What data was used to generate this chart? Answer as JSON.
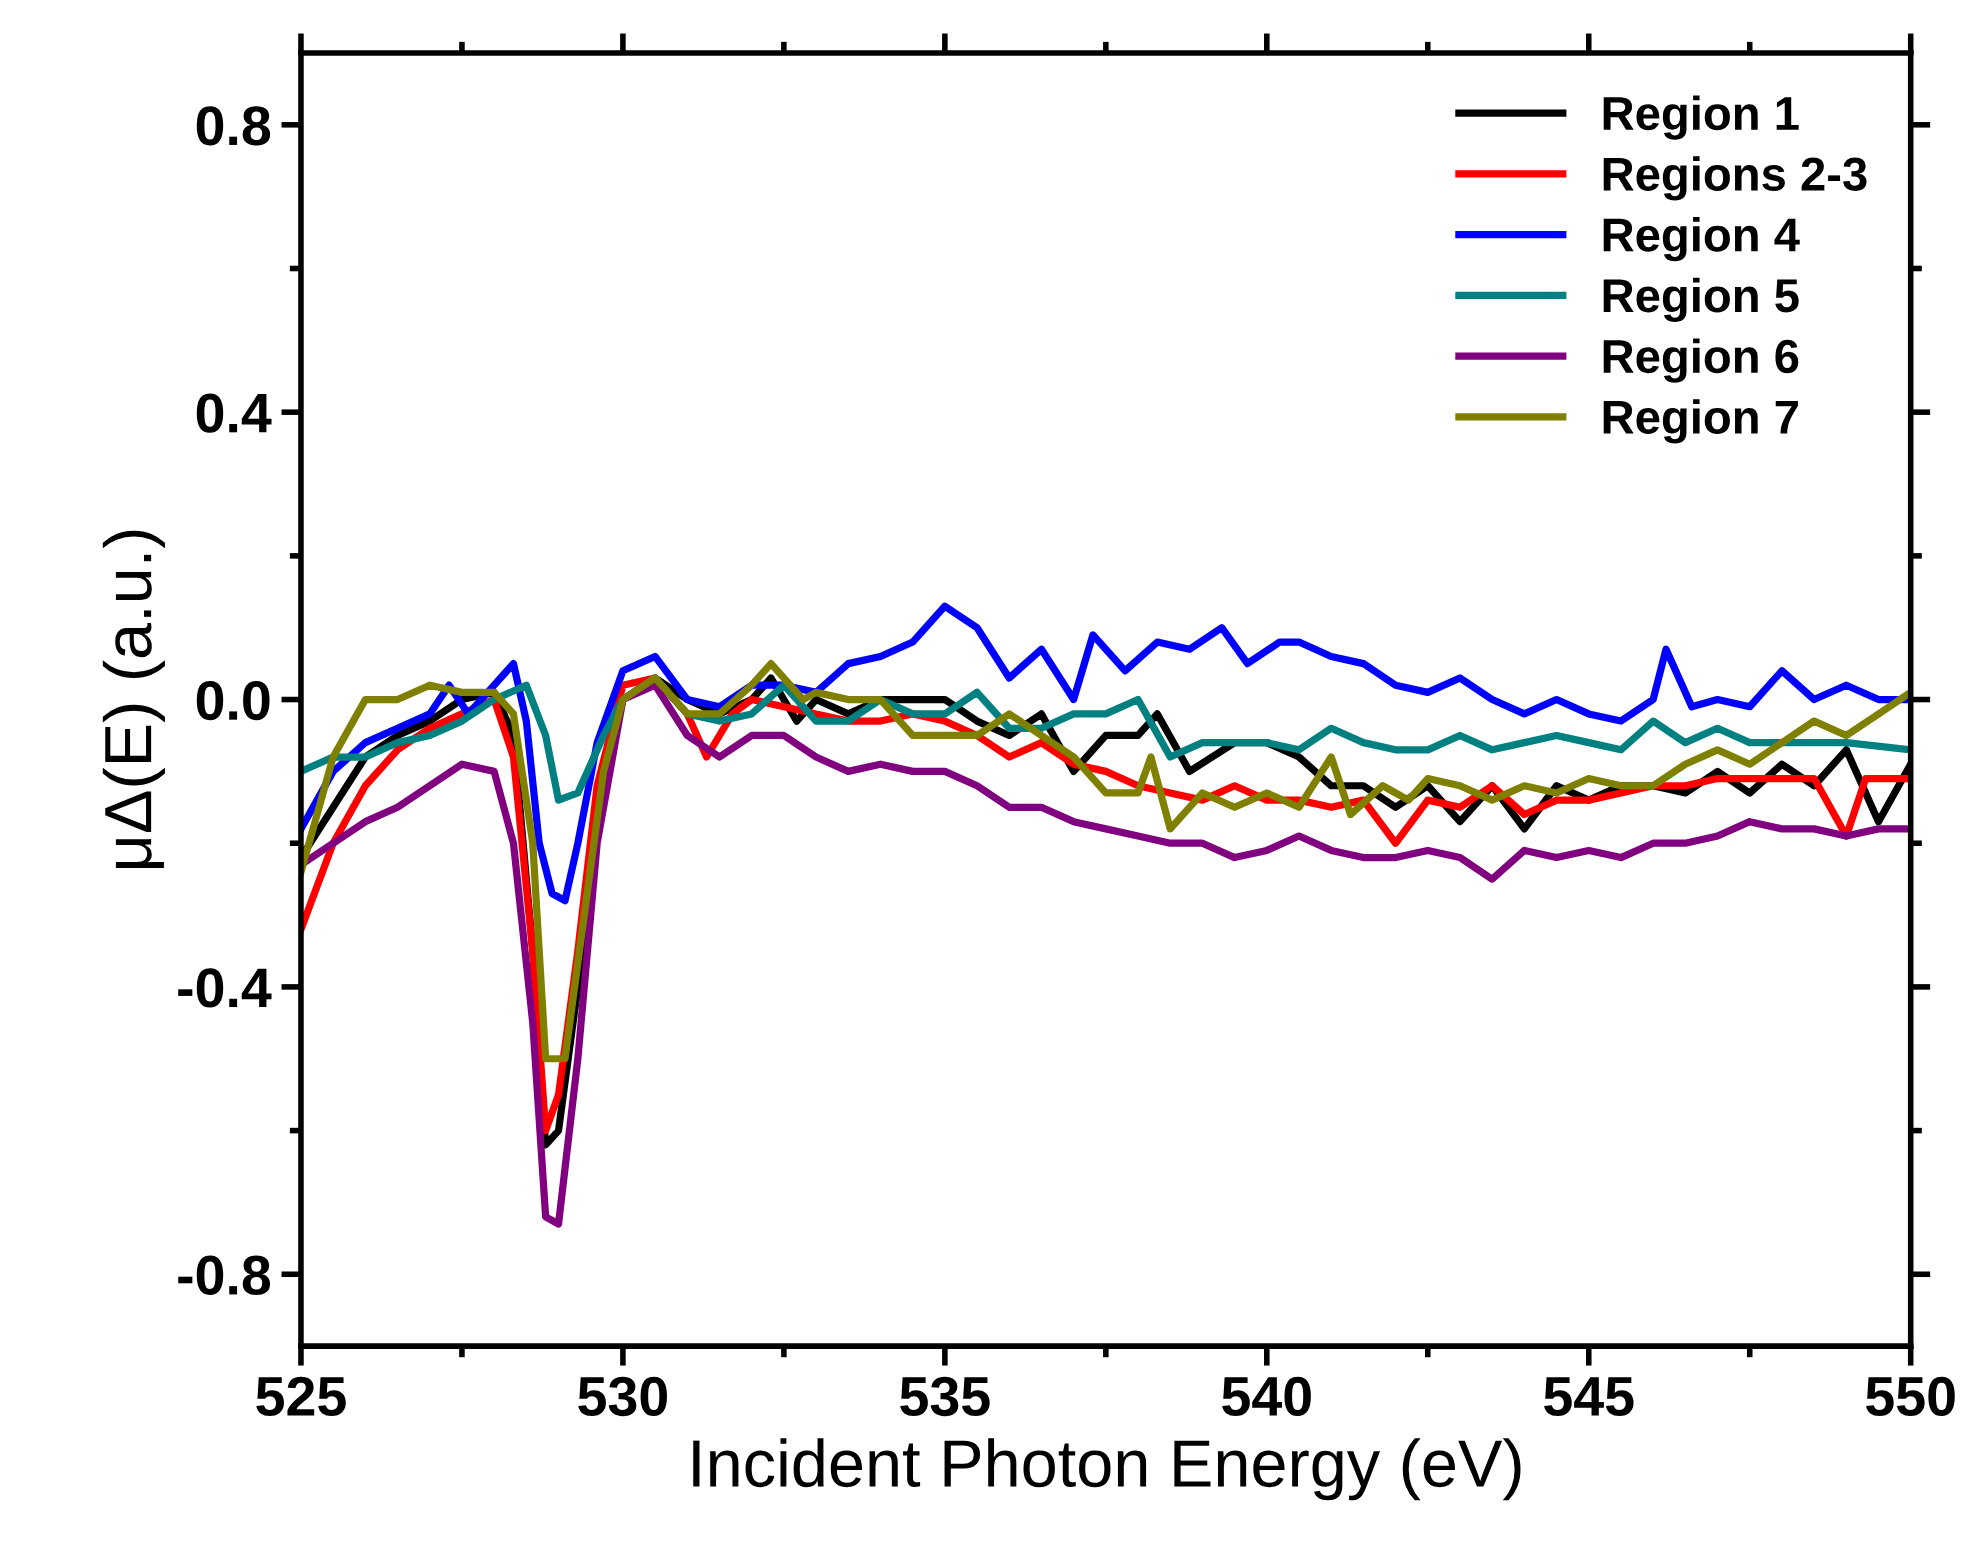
{
  "chart_data": {
    "type": "line",
    "xlabel": "Incident Photon Energy (eV)",
    "ylabel": "μΔ(E) (a.u.)",
    "xlim": [
      525,
      550
    ],
    "ylim": [
      -0.9,
      0.9
    ],
    "xticks": [
      525,
      530,
      535,
      540,
      545,
      550
    ],
    "yticks": [
      {
        "value": -0.8,
        "label": "-0.8"
      },
      {
        "value": -0.4,
        "label": "-0.4"
      },
      {
        "value": 0,
        "label": "0.0"
      },
      {
        "value": 0.4,
        "label": "0.4"
      },
      {
        "value": 0.8,
        "label": "0.8"
      }
    ],
    "grid": false,
    "legend": "top right",
    "marker": "none",
    "line_style": "solid",
    "series": [
      {
        "name": "Region 1",
        "color": "#000000",
        "x": [
          525,
          525.5,
          526,
          526.5,
          527,
          527.5,
          528,
          528.3,
          528.6,
          528.8,
          529.0,
          529.3,
          529.6,
          530,
          530.5,
          531,
          531.5,
          532,
          532.3,
          532.7,
          533,
          533.5,
          534,
          534.5,
          535,
          535.5,
          536,
          536.5,
          537,
          537.5,
          538,
          538.3,
          538.8,
          539.5,
          540,
          540.5,
          541,
          541.5,
          542,
          542.5,
          543,
          543.5,
          544,
          544.5,
          545,
          545.5,
          546,
          546.5,
          547,
          547.5,
          548,
          548.5,
          549,
          549.5,
          550
        ],
        "values": [
          -0.22,
          -0.15,
          -0.08,
          -0.05,
          -0.03,
          0.0,
          0.01,
          -0.05,
          -0.35,
          -0.62,
          -0.6,
          -0.4,
          -0.15,
          0.0,
          0.03,
          0.0,
          -0.02,
          0.0,
          0.03,
          -0.03,
          0.0,
          -0.02,
          0.0,
          0.0,
          0.0,
          -0.03,
          -0.05,
          -0.02,
          -0.1,
          -0.05,
          -0.05,
          -0.02,
          -0.1,
          -0.06,
          -0.06,
          -0.08,
          -0.12,
          -0.12,
          -0.15,
          -0.12,
          -0.17,
          -0.12,
          -0.18,
          -0.12,
          -0.14,
          -0.12,
          -0.12,
          -0.13,
          -0.1,
          -0.13,
          -0.09,
          -0.12,
          -0.07,
          -0.17,
          -0.09
        ]
      },
      {
        "name": "Regions 2-3",
        "color": "#ff0000",
        "x": [
          525,
          525.5,
          526,
          526.5,
          527,
          527.5,
          528,
          528.3,
          528.6,
          528.8,
          529.0,
          529.3,
          529.6,
          530,
          530.5,
          531,
          531.3,
          531.7,
          532,
          532.5,
          533,
          533.5,
          534,
          534.5,
          535,
          535.5,
          536,
          536.5,
          537,
          537.5,
          538,
          538.5,
          539,
          539.5,
          540,
          540.5,
          541,
          541.5,
          542,
          542.5,
          543,
          543.5,
          544,
          544.5,
          545,
          545.5,
          546,
          546.5,
          547,
          547.5,
          548,
          548.5,
          549,
          549.3,
          550
        ],
        "values": [
          -0.32,
          -0.2,
          -0.12,
          -0.07,
          -0.04,
          -0.02,
          0.0,
          -0.08,
          -0.35,
          -0.6,
          -0.55,
          -0.35,
          -0.12,
          0.02,
          0.03,
          -0.02,
          -0.08,
          -0.02,
          0.0,
          -0.01,
          -0.02,
          -0.03,
          -0.03,
          -0.02,
          -0.03,
          -0.05,
          -0.08,
          -0.06,
          -0.09,
          -0.1,
          -0.12,
          -0.13,
          -0.14,
          -0.12,
          -0.14,
          -0.14,
          -0.15,
          -0.14,
          -0.2,
          -0.14,
          -0.15,
          -0.12,
          -0.16,
          -0.14,
          -0.14,
          -0.13,
          -0.12,
          -0.12,
          -0.11,
          -0.11,
          -0.11,
          -0.11,
          -0.19,
          -0.11,
          -0.11
        ]
      },
      {
        "name": "Region 4",
        "color": "#0000ff",
        "x": [
          525,
          525.5,
          526,
          526.5,
          527,
          527.3,
          527.6,
          528,
          528.3,
          528.5,
          528.7,
          528.9,
          529.1,
          529.3,
          529.6,
          530,
          530.5,
          531,
          531.5,
          532,
          532.5,
          533,
          533.5,
          534,
          534.5,
          535,
          535.5,
          536,
          536.5,
          537,
          537.3,
          537.8,
          538.3,
          538.8,
          539.3,
          539.7,
          540.2,
          540.5,
          541,
          541.5,
          542,
          542.5,
          543,
          543.5,
          544,
          544.5,
          545,
          545.5,
          546,
          546.2,
          546.6,
          547,
          547.5,
          548,
          548.5,
          549,
          549.5,
          550
        ],
        "values": [
          -0.18,
          -0.1,
          -0.06,
          -0.04,
          -0.02,
          0.02,
          -0.02,
          0.02,
          0.05,
          -0.03,
          -0.2,
          -0.27,
          -0.28,
          -0.2,
          -0.06,
          0.04,
          0.06,
          0.0,
          -0.01,
          0.02,
          0.02,
          0.01,
          0.05,
          0.06,
          0.08,
          0.13,
          0.1,
          0.03,
          0.07,
          0.0,
          0.09,
          0.04,
          0.08,
          0.07,
          0.1,
          0.05,
          0.08,
          0.08,
          0.06,
          0.05,
          0.02,
          0.01,
          0.03,
          0.0,
          -0.02,
          0.0,
          -0.02,
          -0.03,
          0.0,
          0.07,
          -0.01,
          0.0,
          -0.01,
          0.04,
          0.0,
          0.02,
          0.0,
          0.0
        ]
      },
      {
        "name": "Region 5",
        "color": "#008080",
        "x": [
          525,
          525.5,
          526,
          526.5,
          527,
          527.5,
          528,
          528.5,
          528.8,
          529,
          529.3,
          529.7,
          530,
          530.5,
          531,
          531.5,
          532,
          532.5,
          533,
          533.5,
          534,
          534.5,
          535,
          535.5,
          536,
          536.5,
          537,
          537.5,
          538,
          538.5,
          539,
          539.5,
          540,
          540.5,
          541,
          541.5,
          542,
          542.5,
          543,
          543.5,
          544,
          544.5,
          545,
          545.5,
          546,
          546.5,
          547,
          547.5,
          548,
          548.5,
          549,
          550
        ],
        "values": [
          -0.1,
          -0.08,
          -0.08,
          -0.06,
          -0.05,
          -0.03,
          0.0,
          0.02,
          -0.05,
          -0.14,
          -0.13,
          -0.05,
          0.0,
          0.03,
          -0.02,
          -0.03,
          -0.02,
          0.02,
          -0.03,
          -0.03,
          0.0,
          -0.02,
          -0.02,
          0.01,
          -0.04,
          -0.04,
          -0.02,
          -0.02,
          0.0,
          -0.08,
          -0.06,
          -0.06,
          -0.06,
          -0.07,
          -0.04,
          -0.06,
          -0.07,
          -0.07,
          -0.05,
          -0.07,
          -0.06,
          -0.05,
          -0.06,
          -0.07,
          -0.03,
          -0.06,
          -0.04,
          -0.06,
          -0.06,
          -0.06,
          -0.06,
          -0.07
        ]
      },
      {
        "name": "Region 6",
        "color": "#800080",
        "x": [
          525,
          525.5,
          526,
          526.5,
          527,
          527.5,
          528,
          528.3,
          528.6,
          528.8,
          529.0,
          529.3,
          529.6,
          530,
          530.5,
          531,
          531.5,
          532,
          532.5,
          533,
          533.5,
          534,
          534.5,
          535,
          535.5,
          536,
          536.5,
          537,
          537.5,
          538,
          538.5,
          539,
          539.5,
          540,
          540.5,
          541,
          541.5,
          542,
          542.5,
          543,
          543.5,
          544,
          544.5,
          545,
          545.5,
          546,
          546.5,
          547,
          547.5,
          548,
          548.5,
          549,
          549.5,
          550
        ],
        "values": [
          -0.23,
          -0.2,
          -0.17,
          -0.15,
          -0.12,
          -0.09,
          -0.1,
          -0.2,
          -0.45,
          -0.72,
          -0.73,
          -0.5,
          -0.2,
          0.0,
          0.02,
          -0.05,
          -0.08,
          -0.05,
          -0.05,
          -0.08,
          -0.1,
          -0.09,
          -0.1,
          -0.1,
          -0.12,
          -0.15,
          -0.15,
          -0.17,
          -0.18,
          -0.19,
          -0.2,
          -0.2,
          -0.22,
          -0.21,
          -0.19,
          -0.21,
          -0.22,
          -0.22,
          -0.21,
          -0.22,
          -0.25,
          -0.21,
          -0.22,
          -0.21,
          -0.22,
          -0.2,
          -0.2,
          -0.19,
          -0.17,
          -0.18,
          -0.18,
          -0.19,
          -0.18,
          -0.18
        ]
      },
      {
        "name": "Region 7",
        "color": "#808000",
        "x": [
          525,
          525.5,
          526,
          526.5,
          527,
          527.5,
          528,
          528.3,
          528.6,
          528.8,
          529.1,
          529.4,
          529.7,
          530,
          530.5,
          531,
          531.5,
          532,
          532.3,
          532.8,
          533,
          533.5,
          534,
          534.5,
          535,
          535.5,
          536,
          536.5,
          537,
          537.5,
          538,
          538.2,
          538.5,
          539,
          539.5,
          540,
          540.5,
          541,
          541.3,
          541.8,
          542.2,
          542.5,
          543,
          543.5,
          544,
          544.5,
          545,
          545.5,
          546,
          546.5,
          547,
          547.5,
          548,
          548.5,
          549,
          549.5,
          550
        ],
        "values": [
          -0.24,
          -0.08,
          0.0,
          0.0,
          0.02,
          0.01,
          0.01,
          -0.02,
          -0.2,
          -0.5,
          -0.5,
          -0.3,
          -0.1,
          0.0,
          0.03,
          -0.02,
          -0.02,
          0.02,
          0.05,
          0.0,
          0.01,
          0.0,
          0.0,
          -0.05,
          -0.05,
          -0.05,
          -0.02,
          -0.05,
          -0.08,
          -0.13,
          -0.13,
          -0.08,
          -0.18,
          -0.13,
          -0.15,
          -0.13,
          -0.15,
          -0.08,
          -0.16,
          -0.12,
          -0.14,
          -0.11,
          -0.12,
          -0.14,
          -0.12,
          -0.13,
          -0.11,
          -0.12,
          -0.12,
          -0.09,
          -0.07,
          -0.09,
          -0.06,
          -0.03,
          -0.05,
          -0.02,
          0.01
        ]
      }
    ]
  }
}
